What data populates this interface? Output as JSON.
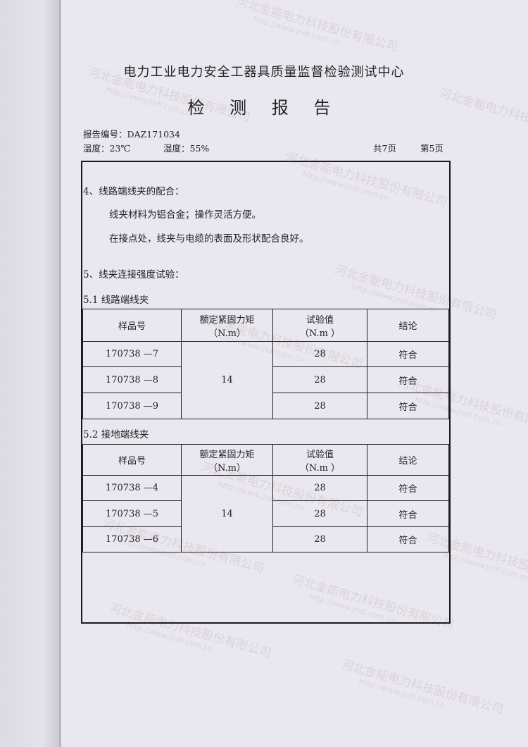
{
  "header": {
    "org": "电力工业电力安全工器具质量监督检验测试中心",
    "title": "检 测 报 告",
    "report_no": "报告编号：DAZ171034",
    "temperature": "温度：23℃",
    "humidity": "湿度：55%",
    "total_pages": "共7页",
    "page": "第5页"
  },
  "section4": {
    "heading": "4、线路端线夹的配合：",
    "line1": "线夹材料为铝合金；操作灵活方便。",
    "line2": "在接点处，线夹与电缆的表面及形状配合良好。"
  },
  "section5": {
    "heading": "5、线夹连接强度试验：",
    "tables": [
      {
        "caption": "5.1 线路端线夹",
        "headers": [
          "样品号",
          "额定紧固力矩\n（N.m）",
          "试验值\n（N.m ）",
          "结论"
        ],
        "torque": "14",
        "rows": [
          {
            "sample": "170738 —7",
            "value": "28",
            "result": "符合"
          },
          {
            "sample": "170738 —8",
            "value": "28",
            "result": "符合"
          },
          {
            "sample": "170738 —9",
            "value": "28",
            "result": "符合"
          }
        ]
      },
      {
        "caption": "5.2 接地端线夹",
        "headers": [
          "样品号",
          "额定紧固力矩\n（N.m）",
          "试验值\n（N.m ）",
          "结论"
        ],
        "torque": "14",
        "rows": [
          {
            "sample": "170738 —4",
            "value": "28",
            "result": "符合"
          },
          {
            "sample": "170738 —5",
            "value": "28",
            "result": "符合"
          },
          {
            "sample": "170738 —6",
            "value": "28",
            "result": "符合"
          }
        ]
      }
    ]
  },
  "watermark": {
    "company": "河北金能电力科技股份有限公司",
    "url": "http://www.jndl.com.cn"
  }
}
